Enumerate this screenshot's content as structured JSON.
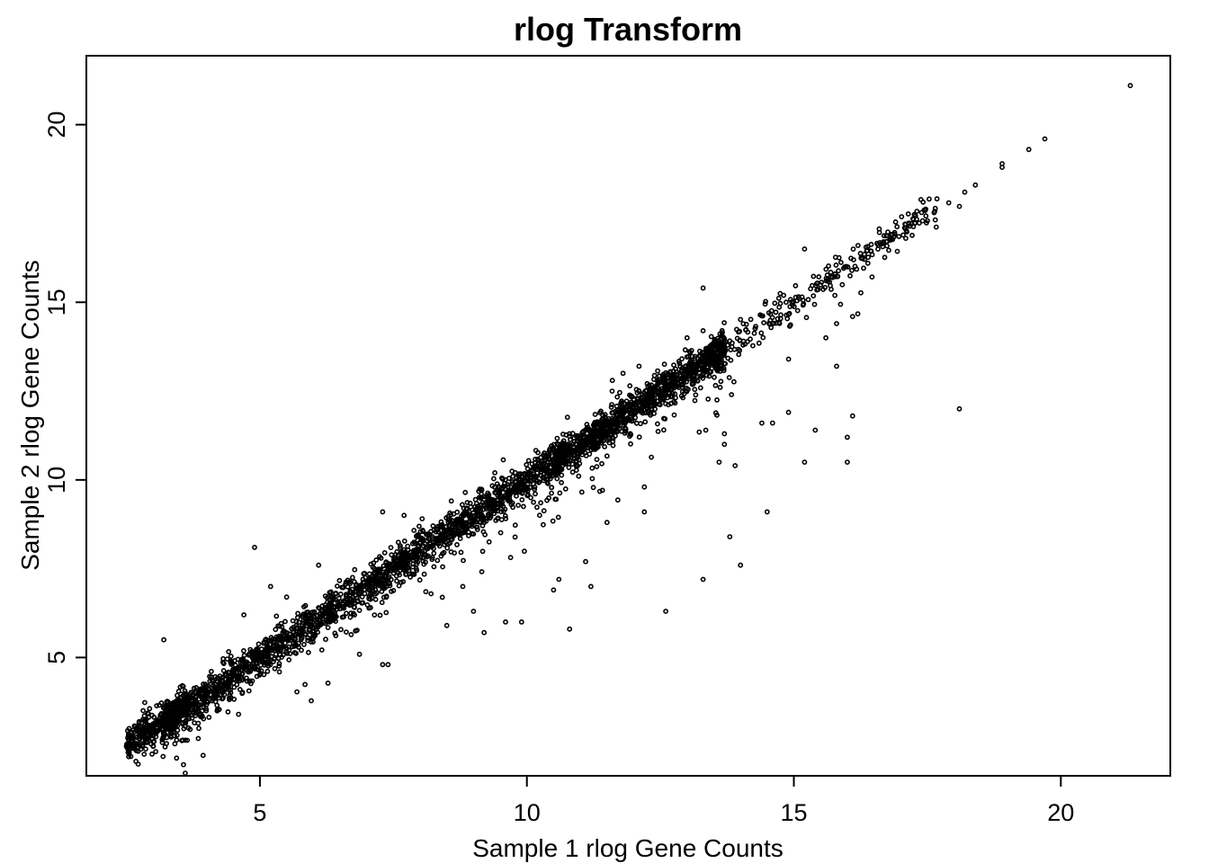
{
  "chart_data": {
    "type": "scatter",
    "title": "rlog Transform",
    "xlabel": "Sample 1 rlog Gene Counts",
    "ylabel": "Sample 2 rlog Gene Counts",
    "xlim": [
      1.75,
      22.05
    ],
    "ylim": [
      1.67,
      21.94
    ],
    "xticks": [
      5,
      10,
      15,
      20
    ],
    "yticks": [
      5,
      10,
      15,
      20
    ],
    "xtick_labels": [
      "5",
      "10",
      "15",
      "20"
    ],
    "ytick_labels": [
      "5",
      "10",
      "15",
      "20"
    ],
    "grid": false,
    "point_style": "open-circle",
    "trend": {
      "slope": 1.0,
      "intercept": 0.0
    },
    "dense_band": {
      "x_range": [
        2.5,
        21.3
      ],
      "n_points": 3400,
      "spread": 0.32
    },
    "outliers": [
      [
        21.3,
        21.1
      ],
      [
        19.7,
        19.6
      ],
      [
        19.4,
        19.3
      ],
      [
        18.9,
        18.9
      ],
      [
        18.9,
        18.8
      ],
      [
        18.4,
        18.3
      ],
      [
        18.2,
        18.1
      ],
      [
        18.1,
        17.7
      ],
      [
        18.1,
        12.0
      ],
      [
        17.9,
        17.8
      ],
      [
        15.2,
        16.5
      ],
      [
        13.3,
        15.4
      ],
      [
        13.3,
        14.2
      ],
      [
        16.1,
        14.6
      ],
      [
        15.8,
        14.4
      ],
      [
        15.6,
        14.0
      ],
      [
        14.9,
        13.4
      ],
      [
        15.8,
        13.2
      ],
      [
        16.1,
        11.8
      ],
      [
        15.4,
        11.4
      ],
      [
        16.0,
        11.2
      ],
      [
        16.0,
        10.5
      ],
      [
        15.2,
        10.5
      ],
      [
        14.9,
        11.9
      ],
      [
        14.6,
        11.6
      ],
      [
        14.4,
        11.6
      ],
      [
        13.7,
        11.3
      ],
      [
        13.7,
        11.0
      ],
      [
        13.6,
        10.5
      ],
      [
        13.9,
        10.4
      ],
      [
        14.5,
        9.1
      ],
      [
        13.8,
        8.4
      ],
      [
        14.0,
        7.6
      ],
      [
        13.3,
        7.2
      ],
      [
        12.6,
        6.3
      ],
      [
        12.2,
        9.8
      ],
      [
        12.2,
        9.1
      ],
      [
        11.5,
        8.8
      ],
      [
        11.1,
        7.7
      ],
      [
        11.2,
        7.0
      ],
      [
        10.8,
        5.8
      ],
      [
        10.6,
        7.2
      ],
      [
        10.5,
        6.9
      ],
      [
        9.9,
        6.0
      ],
      [
        9.6,
        6.0
      ],
      [
        9.2,
        5.7
      ],
      [
        9.0,
        6.3
      ],
      [
        8.5,
        5.9
      ],
      [
        8.8,
        7.0
      ],
      [
        4.9,
        8.1
      ],
      [
        4.8,
        5.1
      ],
      [
        3.2,
        5.5
      ],
      [
        2.8,
        2.5
      ],
      [
        2.5,
        2.5
      ],
      [
        3.0,
        2.5
      ],
      [
        4.2,
        3.5
      ],
      [
        4.6,
        3.4
      ],
      [
        7.4,
        4.8
      ],
      [
        7.3,
        4.8
      ],
      [
        5.2,
        7.0
      ],
      [
        5.5,
        6.7
      ],
      [
        6.1,
        7.6
      ],
      [
        4.7,
        6.2
      ],
      [
        7.3,
        9.1
      ],
      [
        7.7,
        9.0
      ],
      [
        9.4,
        10.2
      ],
      [
        11.6,
        12.8
      ],
      [
        12.1,
        13.2
      ],
      [
        13.0,
        14.0
      ],
      [
        11.8,
        13.0
      ]
    ]
  }
}
